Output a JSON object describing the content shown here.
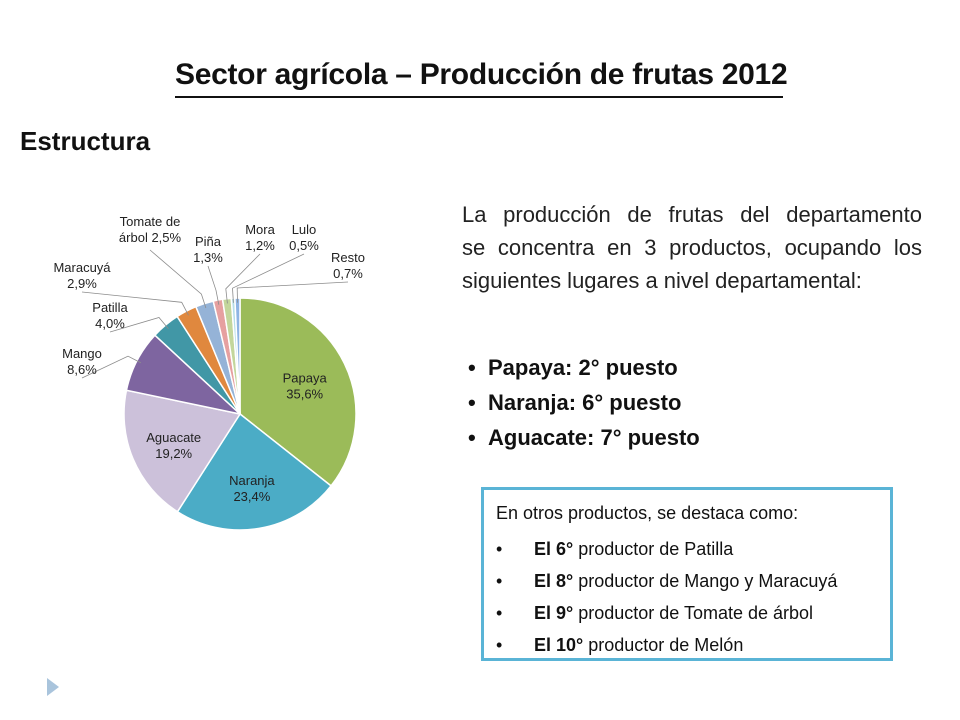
{
  "slide": {
    "title": "Sector agrícola – Producción de frutas 2012",
    "section_label": "Estructura"
  },
  "intro": {
    "lines": [
      "La producción de frutas del departamento",
      "se concentra en 3 productos, ocupando los",
      "siguientes lugares a nivel departamental:"
    ]
  },
  "ranking": [
    "Papaya: 2° puesto",
    "Naranja: 6° puesto",
    "Aguacate: 7° puesto"
  ],
  "box": {
    "heading": "En otros productos, se destaca como:",
    "items": [
      {
        "rank": "El 6°",
        "text": " productor de Patilla"
      },
      {
        "rank": "El 8°",
        "text": " productor de Mango y Maracuyá"
      },
      {
        "rank": "El 9°",
        "text": " productor de Tomate de árbol"
      },
      {
        "rank": "El 10°",
        "text": " productor de Melón"
      }
    ]
  },
  "colors": {
    "box_border": "#5ab4d6",
    "nav_arrow": "#a9c4dc"
  },
  "icons": {
    "bullet": "•",
    "nav": "triangle-right-icon"
  },
  "chart_data": {
    "type": "pie",
    "start_angle_deg": 0,
    "direction": "clockwise",
    "slices": [
      {
        "name": "Papaya",
        "value": 35.6,
        "label": "35,6%",
        "color": "#9bbb59",
        "label_placement": "inside"
      },
      {
        "name": "Naranja",
        "value": 23.4,
        "label": "23,4%",
        "color": "#4bacc6",
        "label_placement": "inside"
      },
      {
        "name": "Aguacate",
        "value": 19.2,
        "label": "19,2%",
        "color": "#ccc1da",
        "label_placement": "inside"
      },
      {
        "name": "Mango",
        "value": 8.6,
        "label": "8,6%",
        "color": "#7e65a0",
        "label_placement": "outside"
      },
      {
        "name": "Patilla",
        "value": 4.0,
        "label": "4,0%",
        "color": "#4197a6",
        "label_placement": "outside"
      },
      {
        "name": "Maracuyá",
        "value": 2.9,
        "label": "2,9%",
        "color": "#e0883e",
        "label_placement": "outside"
      },
      {
        "name": "Tomate de árbol",
        "value": 2.5,
        "label": "2,5%",
        "color": "#95b3d7",
        "label_placement": "outside"
      },
      {
        "name": "Piña",
        "value": 1.3,
        "label": "1,3%",
        "color": "#e6a0a0",
        "label_placement": "outside"
      },
      {
        "name": "Mora",
        "value": 1.2,
        "label": "1,2%",
        "color": "#c3d69b",
        "label_placement": "outside"
      },
      {
        "name": "Lulo",
        "value": 0.5,
        "label": "0,5%",
        "color": "#b7dee8",
        "label_placement": "outside"
      },
      {
        "name": "Resto",
        "value": 0.7,
        "label": "0,7%",
        "color": "#8eb4e3",
        "label_placement": "outside"
      }
    ]
  }
}
